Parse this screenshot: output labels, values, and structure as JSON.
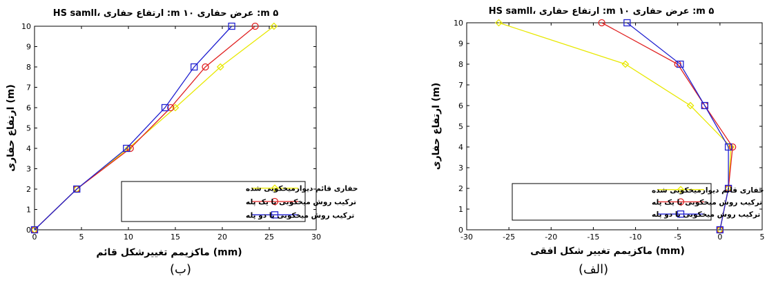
{
  "chart_data": [
    {
      "type": "line",
      "panel_label": "(ب)",
      "title": "HS samll، ارتفاع حفاری :m ۱۰ عرض حفاری :m ۵",
      "xlabel": "ماکزیمم تغییرشکل قائم (mm)",
      "ylabel": "ارتفاع حفاری (m)",
      "xlim": [
        0,
        30
      ],
      "ylim": [
        0,
        10
      ],
      "x_ticks": [
        "0",
        "5",
        "10",
        "15",
        "20",
        "25",
        "30"
      ],
      "y_ticks": [
        "0",
        "1",
        "2",
        "3",
        "4",
        "5",
        "6",
        "7",
        "8",
        "9",
        "10"
      ],
      "legend_position": "lower-right",
      "series": [
        {
          "name": "حفاری قائم دیوارمیخکوبی شده",
          "color": "#e8e800",
          "marker": "diamond",
          "points": [
            [
              0,
              0
            ],
            [
              4.5,
              2
            ],
            [
              10,
              4
            ],
            [
              15,
              6
            ],
            [
              19.8,
              8
            ],
            [
              25.5,
              10
            ]
          ]
        },
        {
          "name": "ترکیب روش میخکوبی با یک پله",
          "color": "#e02020",
          "marker": "circle",
          "points": [
            [
              0,
              0
            ],
            [
              4.5,
              2
            ],
            [
              10.2,
              4
            ],
            [
              14.5,
              6
            ],
            [
              18.2,
              8
            ],
            [
              23.5,
              10
            ]
          ]
        },
        {
          "name": "ترکیب روش میخکوبی با دو پله",
          "color": "#2020d0",
          "marker": "square",
          "points": [
            [
              0,
              0
            ],
            [
              4.5,
              2
            ],
            [
              9.8,
              4
            ],
            [
              13.9,
              6
            ],
            [
              17,
              8
            ],
            [
              21,
              10
            ]
          ]
        }
      ]
    },
    {
      "type": "line",
      "panel_label": "(الف)",
      "title": "HS samll، ارتفاع حفاری :m ۱۰ عرض حفاری :m ۵",
      "xlabel": "ماکزیمم تغییر شکل افقی (mm)",
      "ylabel": "ارتفاع حفاری (m)",
      "xlim": [
        -30,
        5
      ],
      "ylim": [
        0,
        10
      ],
      "x_ticks": [
        "-30",
        "-25",
        "-20",
        "-15",
        "-10",
        "-5",
        "0",
        "5"
      ],
      "y_ticks": [
        "0",
        "1",
        "2",
        "3",
        "4",
        "5",
        "6",
        "7",
        "8",
        "9",
        "10"
      ],
      "legend_position": "lower-middle",
      "series": [
        {
          "name": "حفاری قائم دیوارمیخکوبی شده",
          "color": "#e8e800",
          "marker": "diamond",
          "points": [
            [
              -26.2,
              10
            ],
            [
              -11.2,
              8
            ],
            [
              -3.5,
              6
            ],
            [
              1.3,
              4
            ],
            [
              1,
              2
            ],
            [
              0,
              0
            ]
          ]
        },
        {
          "name": "ترکیب روش میخکوبی با یک پله",
          "color": "#e02020",
          "marker": "circle",
          "points": [
            [
              -14,
              10
            ],
            [
              -5,
              8
            ],
            [
              -1.8,
              6
            ],
            [
              1.5,
              4
            ],
            [
              1,
              2
            ],
            [
              0,
              0
            ]
          ]
        },
        {
          "name": "ترکیب روش میخکوبی با دو پله",
          "color": "#2020d0",
          "marker": "square",
          "points": [
            [
              -11,
              10
            ],
            [
              -4.7,
              8
            ],
            [
              -1.8,
              6
            ],
            [
              1,
              4
            ],
            [
              1,
              2
            ],
            [
              0,
              0
            ]
          ]
        }
      ]
    }
  ]
}
